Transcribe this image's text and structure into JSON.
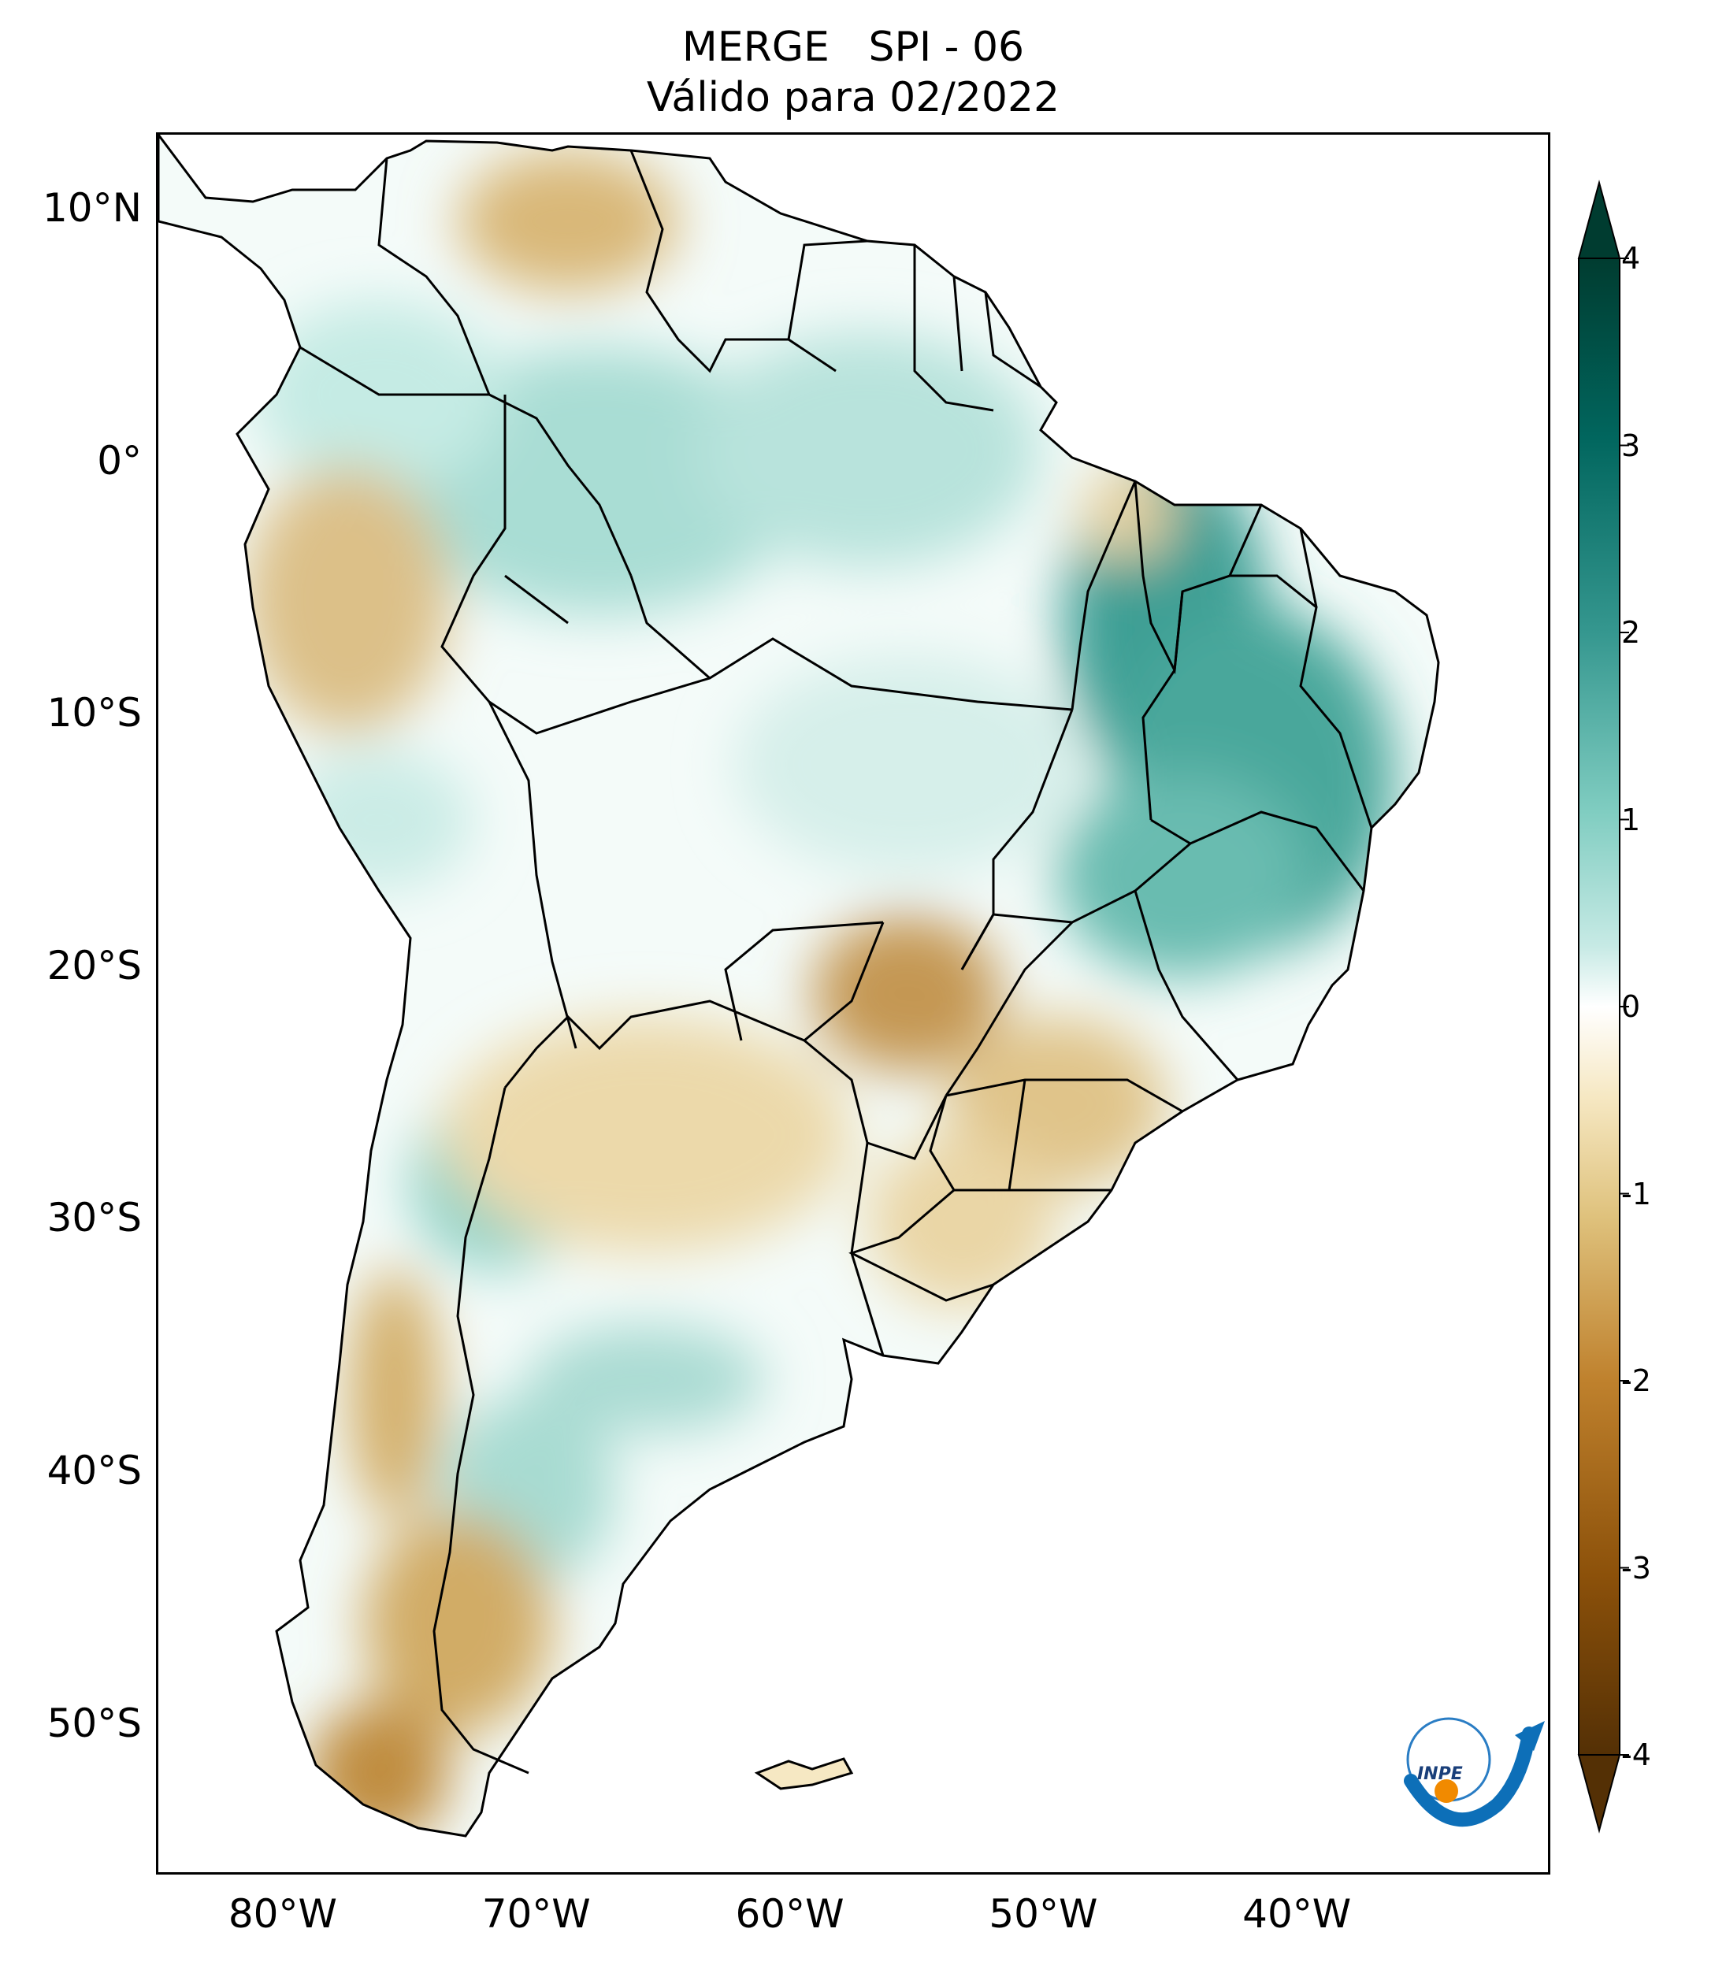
{
  "title": {
    "line1": "MERGE   SPI - 06",
    "line2": "Válido para 02/2022"
  },
  "map": {
    "region": "South America",
    "lon_range": [
      -85,
      -30
    ],
    "lat_range": [
      -56,
      13
    ],
    "lat_ticks": [
      {
        "value": 10,
        "label": "10°N"
      },
      {
        "value": 0,
        "label": "0°"
      },
      {
        "value": -10,
        "label": "10°S"
      },
      {
        "value": -20,
        "label": "20°S"
      },
      {
        "value": -30,
        "label": "30°S"
      },
      {
        "value": -40,
        "label": "40°S"
      },
      {
        "value": -50,
        "label": "50°S"
      }
    ],
    "lon_ticks": [
      {
        "value": -80,
        "label": "80°W"
      },
      {
        "value": -70,
        "label": "70°W"
      },
      {
        "value": -60,
        "label": "60°W"
      },
      {
        "value": -50,
        "label": "50°W"
      },
      {
        "value": -40,
        "label": "40°W"
      }
    ]
  },
  "colorbar": {
    "min": -4,
    "max": 4,
    "extend": "both",
    "ticks": [
      {
        "value": 4,
        "label": "4"
      },
      {
        "value": 3,
        "label": "3"
      },
      {
        "value": 2,
        "label": "2"
      },
      {
        "value": 1,
        "label": "1"
      },
      {
        "value": 0,
        "label": "0"
      },
      {
        "value": -1,
        "label": "-1"
      },
      {
        "value": -2,
        "label": "-2"
      },
      {
        "value": -3,
        "label": "-3"
      },
      {
        "value": -4,
        "label": "-4"
      }
    ],
    "colors": [
      "#543005",
      "#8c510a",
      "#bf812d",
      "#dfc27d",
      "#f6e8c3",
      "#ffffff",
      "#c7eae5",
      "#80cdc1",
      "#35978f",
      "#01665e",
      "#003c30"
    ]
  },
  "logo": {
    "text": "INPE"
  }
}
